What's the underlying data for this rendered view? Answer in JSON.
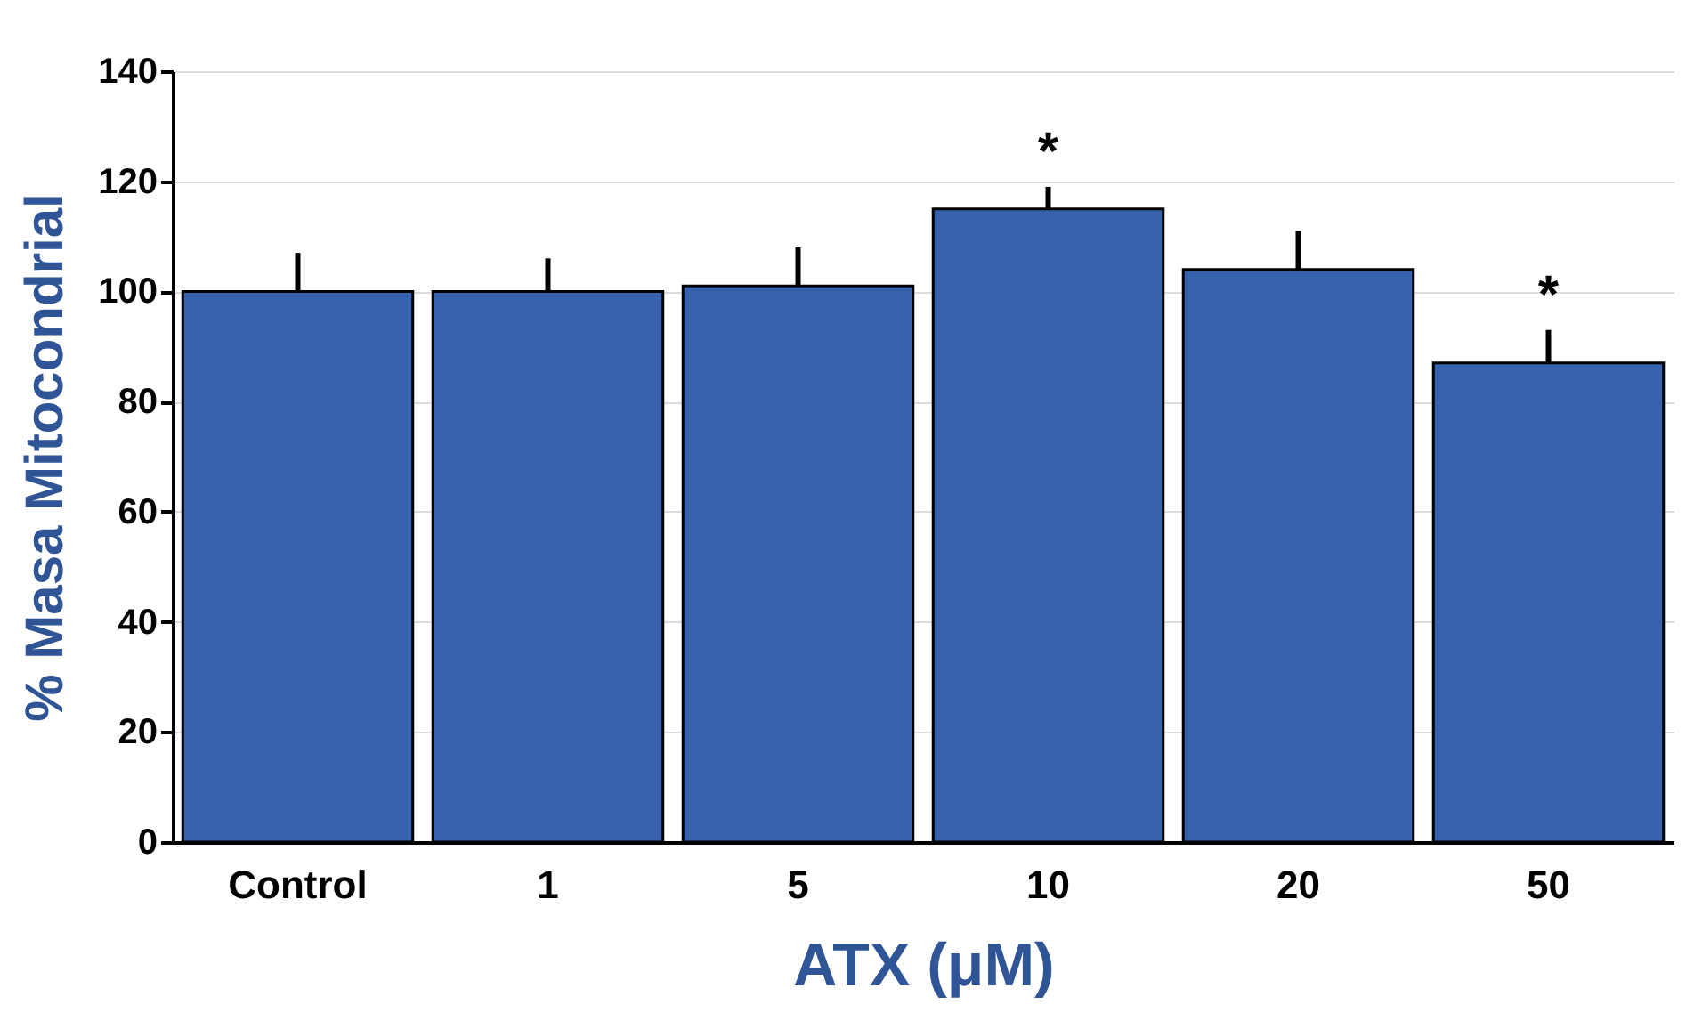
{
  "chart_data": {
    "type": "bar",
    "xlabel": "ATX (μM)",
    "ylabel": "% Masa Mitocondrial",
    "categories": [
      "Control",
      "1",
      "5",
      "10",
      "20",
      "50"
    ],
    "values": [
      100,
      100,
      101,
      115,
      104,
      87
    ],
    "errors": [
      [
        100,
        107
      ],
      [
        100,
        106
      ],
      [
        101,
        108
      ],
      [
        115,
        119
      ],
      [
        104,
        111
      ],
      [
        87,
        93
      ]
    ],
    "color": "#3561ad",
    "ylim": [
      0,
      140
    ],
    "yticks": [
      0,
      20,
      40,
      60,
      80,
      100,
      120,
      140
    ],
    "grid": "y",
    "annotations": [
      {
        "text": "*",
        "x": "10",
        "y": 119
      },
      {
        "text": "*",
        "x": "50",
        "y": 93
      }
    ]
  }
}
